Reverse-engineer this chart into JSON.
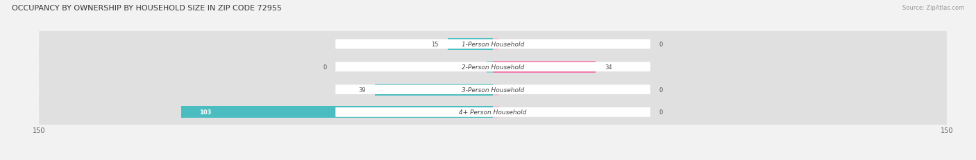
{
  "title": "OCCUPANCY BY OWNERSHIP BY HOUSEHOLD SIZE IN ZIP CODE 72955",
  "source": "Source: ZipAtlas.com",
  "categories": [
    "1-Person Household",
    "2-Person Household",
    "3-Person Household",
    "4+ Person Household"
  ],
  "owner_values": [
    15,
    0,
    39,
    103
  ],
  "renter_values": [
    0,
    34,
    0,
    0
  ],
  "owner_color": "#4BBDC0",
  "renter_color": "#F472A8",
  "renter_color_light": "#F7A8C8",
  "bg_color": "#f2f2f2",
  "row_bg_odd": "#e8e8e8",
  "row_bg_even": "#ebebeb",
  "label_bg": "#ffffff",
  "x_max": 150,
  "x_min": -150,
  "figsize": [
    14.06,
    2.32
  ],
  "dpi": 100
}
